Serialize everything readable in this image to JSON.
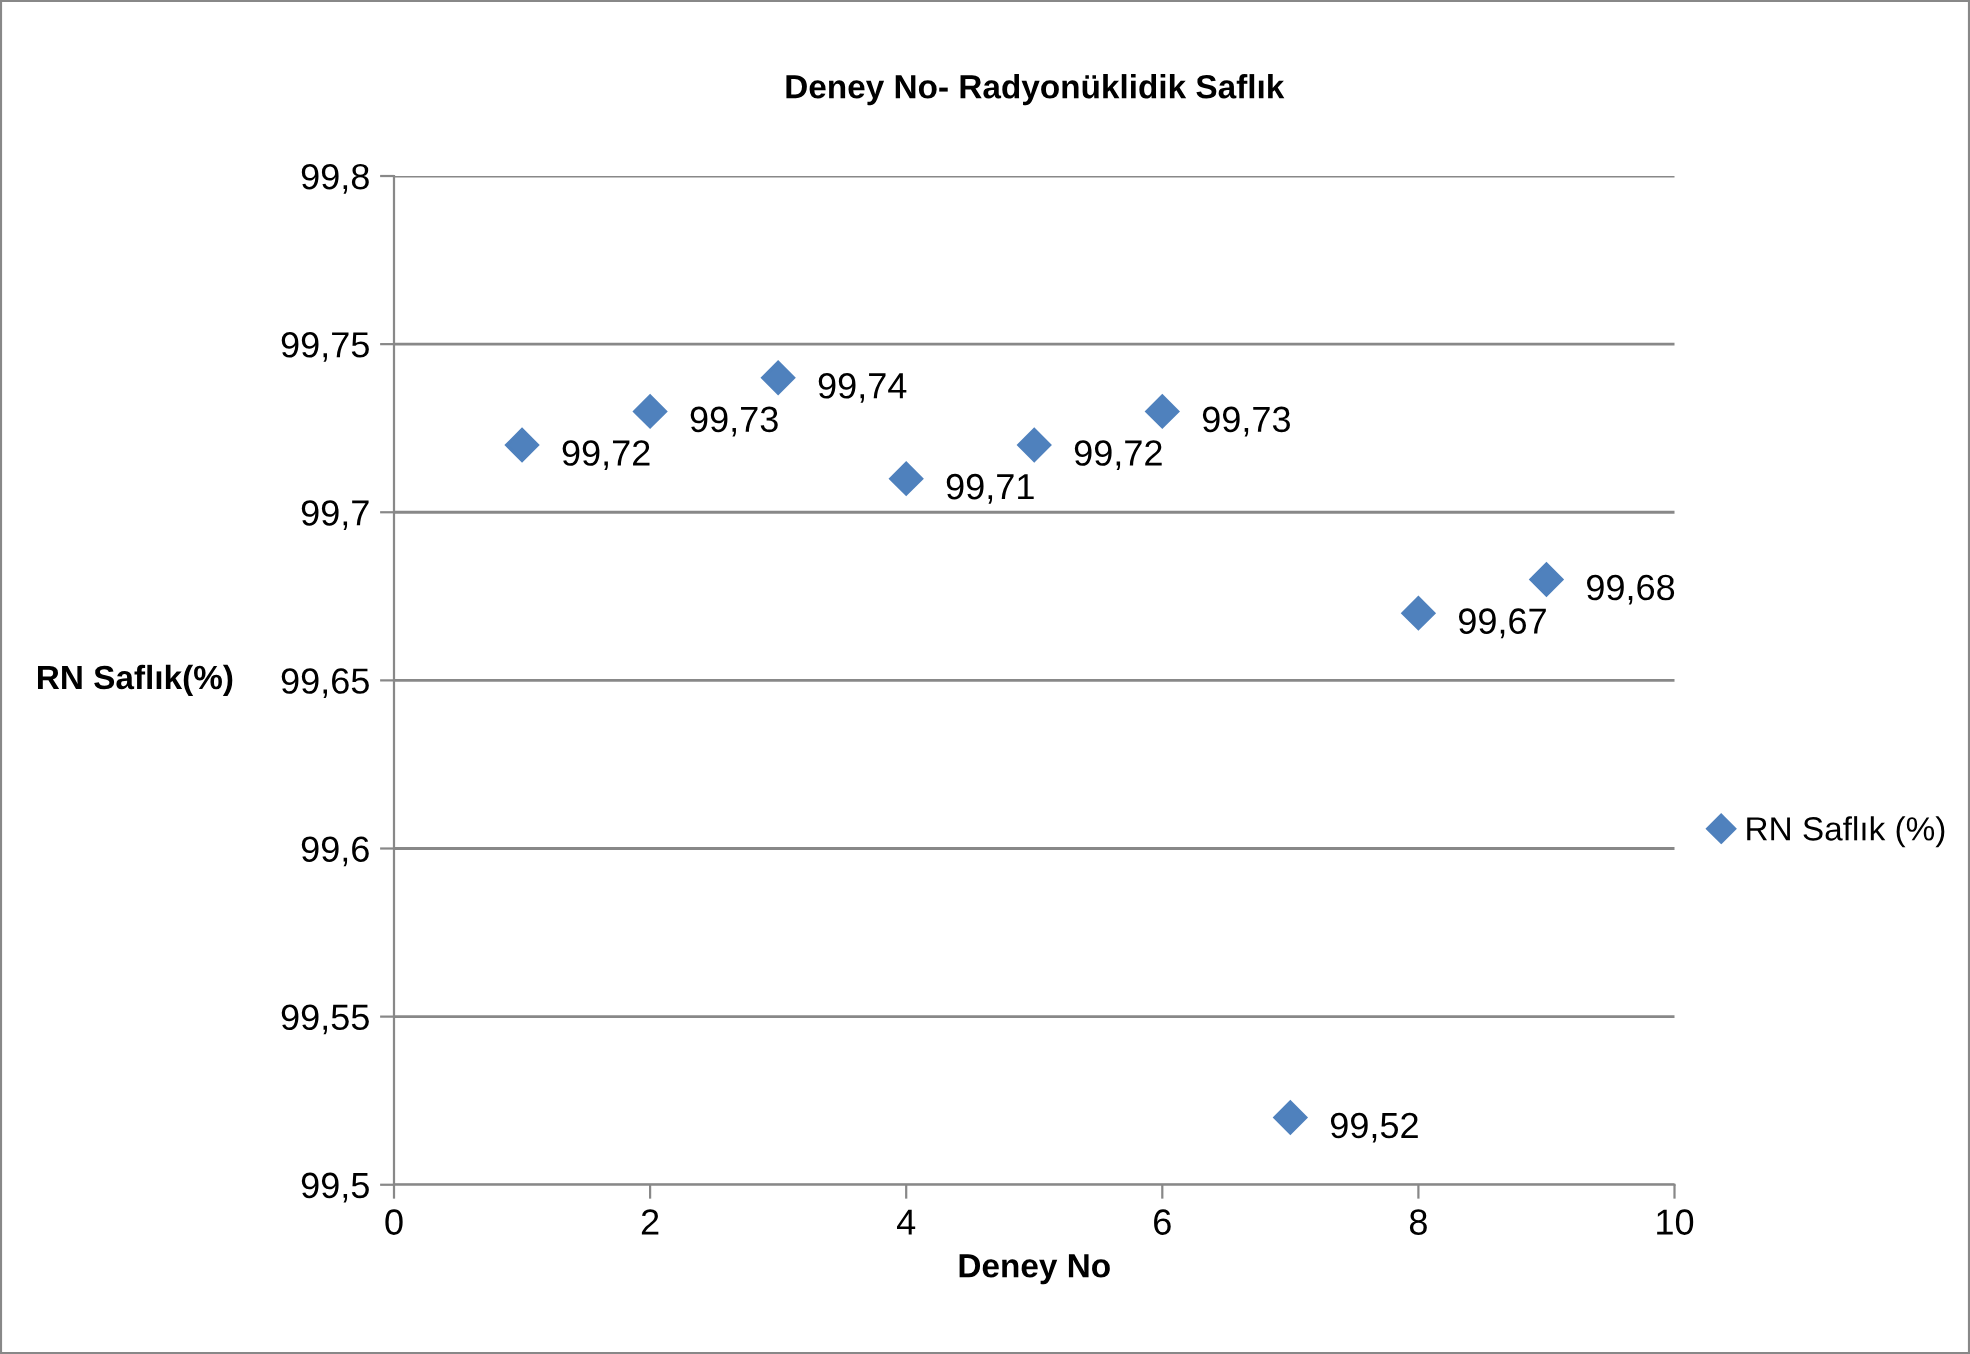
{
  "chart_data": {
    "type": "scatter",
    "title": "Deney No- Radyonüklidik Saflık",
    "xlabel": "Deney No",
    "ylabel": "RN Saflık(%)",
    "x": [
      1,
      2,
      3,
      4,
      5,
      6,
      7,
      8,
      9
    ],
    "series": [
      {
        "name": "RN Saflık (%)",
        "color": "#4f81bd",
        "values": [
          99.72,
          99.73,
          99.74,
          99.71,
          99.72,
          99.73,
          99.52,
          99.67,
          99.68
        ],
        "value_labels": [
          "99,72",
          "99,73",
          "99,74",
          "99,71",
          "99,72",
          "99,73",
          "99,52",
          "99,67",
          "99,68"
        ]
      }
    ],
    "marker": "diamond",
    "xlim": [
      0,
      10
    ],
    "xticks": [
      0,
      2,
      4,
      6,
      8,
      10
    ],
    "ylim": [
      99.5,
      99.8
    ],
    "yticks": [
      {
        "value": 99.5,
        "label": "99,5"
      },
      {
        "value": 99.55,
        "label": "99,55"
      },
      {
        "value": 99.6,
        "label": "99,6"
      },
      {
        "value": 99.65,
        "label": "99,65"
      },
      {
        "value": 99.7,
        "label": "99,7"
      },
      {
        "value": 99.75,
        "label": "99,75"
      },
      {
        "value": 99.8,
        "label": "99,8"
      }
    ],
    "grid": "y",
    "legend": "right"
  }
}
